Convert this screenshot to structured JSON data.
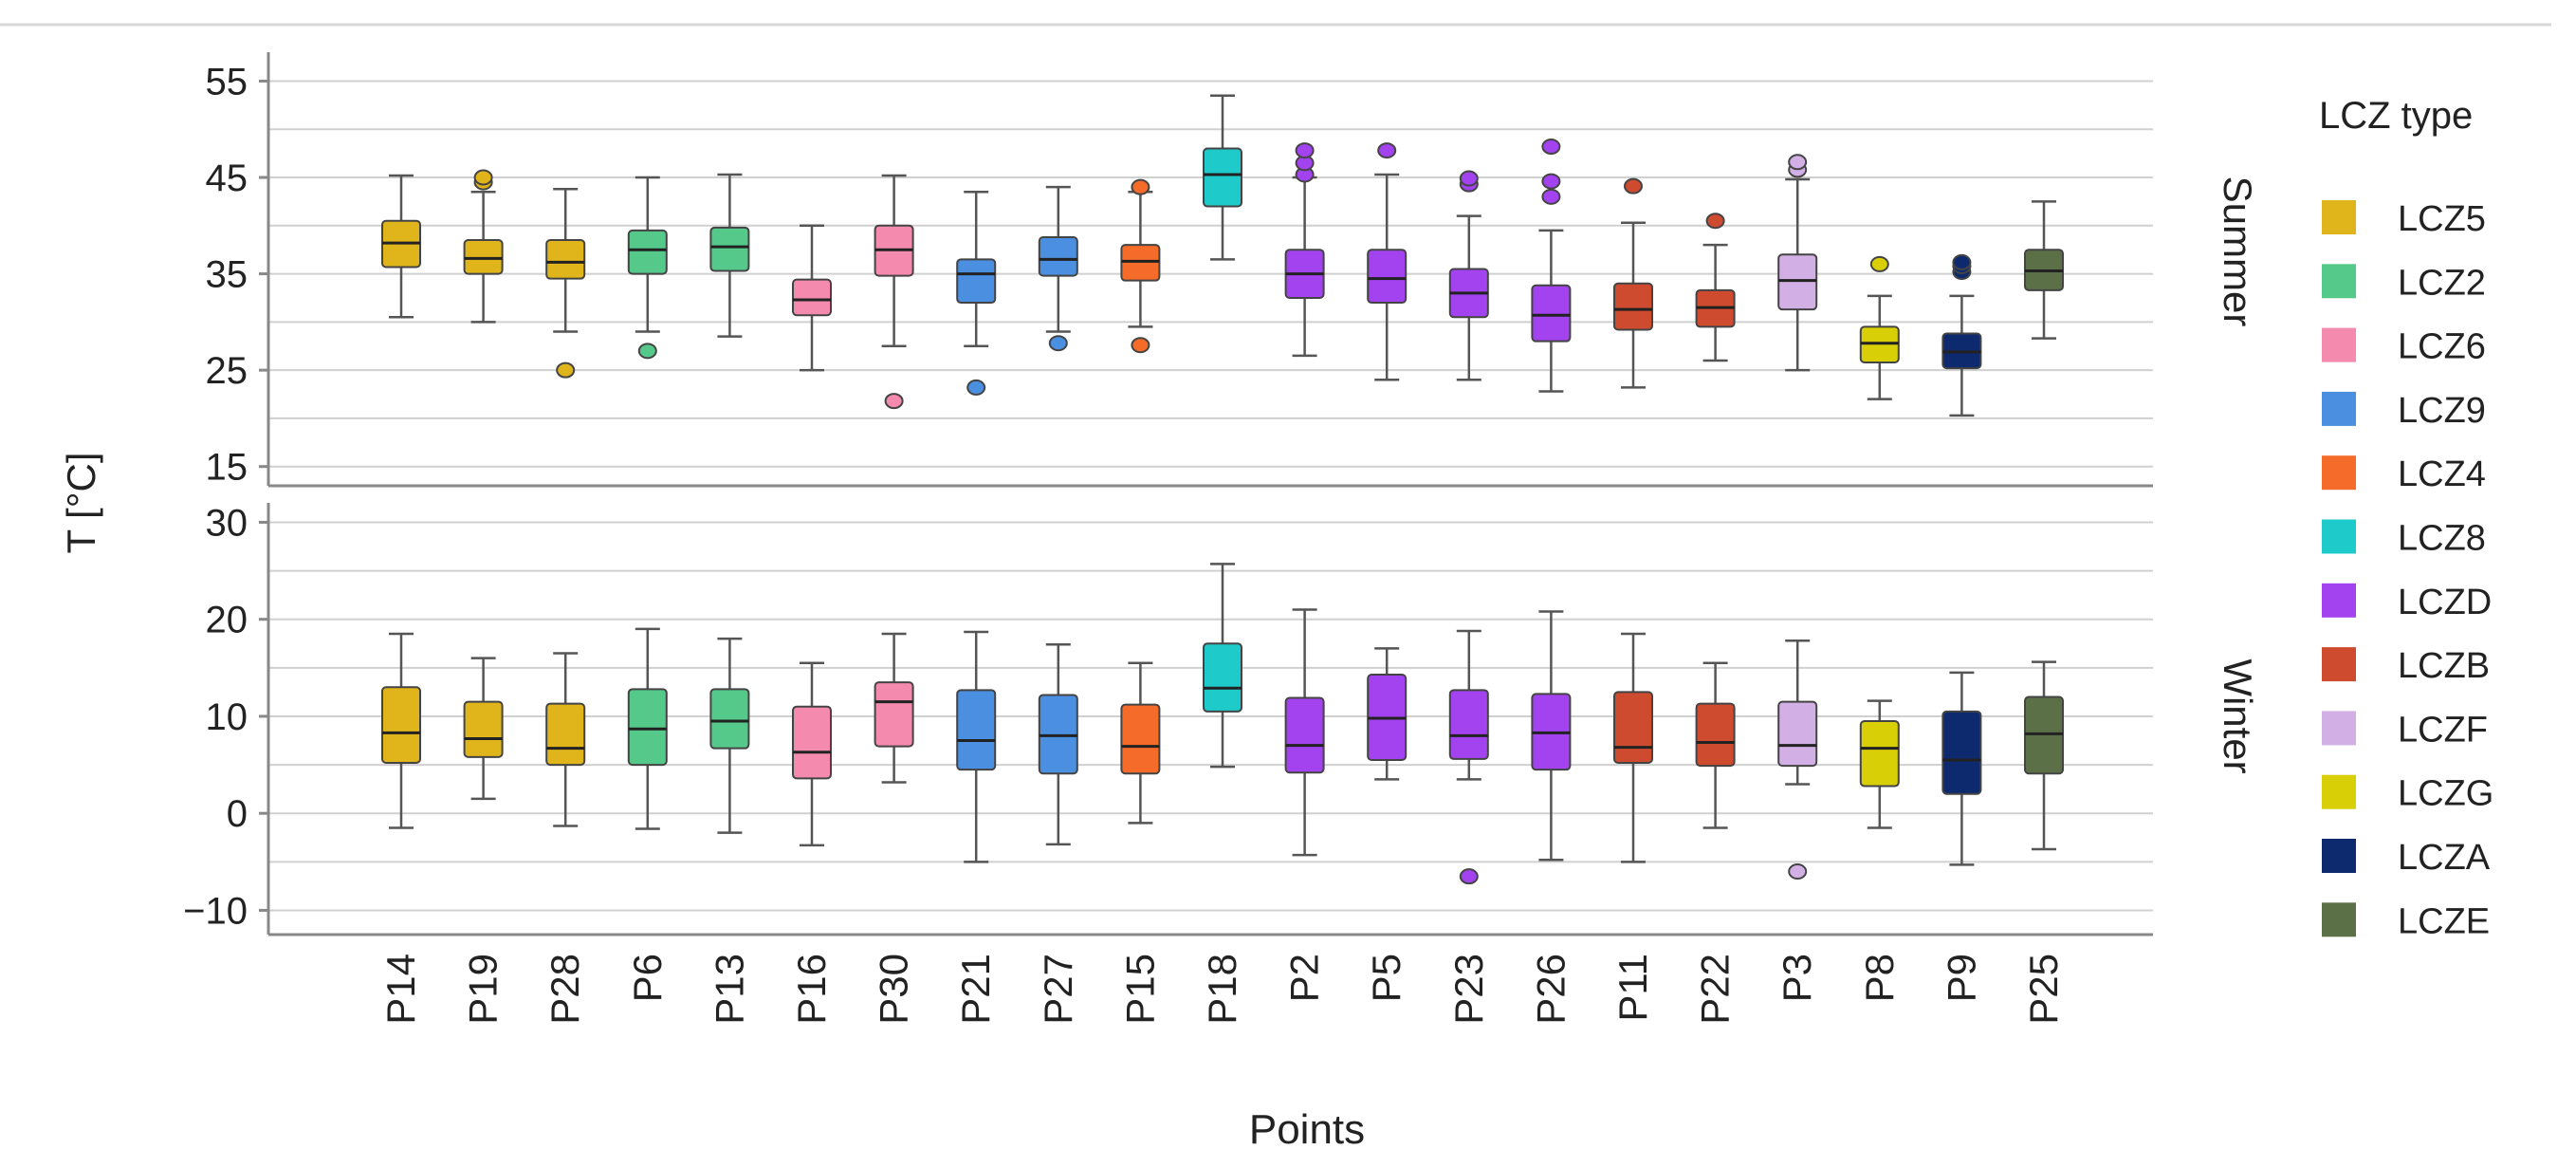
{
  "chart_data": {
    "type": "boxplot",
    "xlabel": "Points",
    "ylabel": "T [°C]",
    "categories": [
      "P14",
      "P19",
      "P28",
      "P6",
      "P13",
      "P16",
      "P30",
      "P21",
      "P27",
      "P15",
      "P18",
      "P2",
      "P5",
      "P23",
      "P26",
      "P11",
      "P22",
      "P3",
      "P8",
      "P9",
      "P25"
    ],
    "lcz": [
      "LCZ5",
      "LCZ5",
      "LCZ5",
      "LCZ2",
      "LCZ2",
      "LCZ6",
      "LCZ6",
      "LCZ9",
      "LCZ9",
      "LCZ4",
      "LCZ8",
      "LCZD",
      "LCZD",
      "LCZD",
      "LCZD",
      "LCZB",
      "LCZB",
      "LCZF",
      "LCZG",
      "LCZA",
      "LCZE"
    ],
    "legend": {
      "title": "LCZ type",
      "placement": "right",
      "items": [
        {
          "label": "LCZ5",
          "color": "#e0b51c"
        },
        {
          "label": "LCZ2",
          "color": "#54c98a"
        },
        {
          "label": "LCZ6",
          "color": "#f48aae"
        },
        {
          "label": "LCZ9",
          "color": "#4b8fe0"
        },
        {
          "label": "LCZ4",
          "color": "#f46b2a"
        },
        {
          "label": "LCZ8",
          "color": "#1fcbca"
        },
        {
          "label": "LCZD",
          "color": "#a343f0"
        },
        {
          "label": "LCZB",
          "color": "#cf4b2f"
        },
        {
          "label": "LCZF",
          "color": "#d2b0e6"
        },
        {
          "label": "LCZG",
          "color": "#d8cf06"
        },
        {
          "label": "LCZA",
          "color": "#0d2a6e"
        },
        {
          "label": "LCZE",
          "color": "#5c7048"
        }
      ]
    },
    "panels": [
      {
        "name": "Summer",
        "ylim": [
          13,
          58
        ],
        "yticks": [
          15,
          25,
          35,
          45,
          55
        ],
        "ytick_labels": [
          "15",
          "25",
          "35",
          "45",
          "55"
        ],
        "gridlines": [
          15,
          20,
          25,
          30,
          35,
          40,
          45,
          50,
          55
        ],
        "boxes": [
          {
            "min": 30.5,
            "q1": 35.7,
            "median": 38.2,
            "q3": 40.5,
            "max": 45.2,
            "outliers": []
          },
          {
            "min": 30.0,
            "q1": 35.0,
            "median": 36.6,
            "q3": 38.5,
            "max": 43.5,
            "outliers": [
              44.5,
              45.0
            ]
          },
          {
            "min": 29.0,
            "q1": 34.5,
            "median": 36.2,
            "q3": 38.5,
            "max": 43.8,
            "outliers": [
              25.0
            ]
          },
          {
            "min": 29.0,
            "q1": 35.0,
            "median": 37.5,
            "q3": 39.5,
            "max": 45.0,
            "outliers": [
              27.0
            ]
          },
          {
            "min": 28.5,
            "q1": 35.3,
            "median": 37.8,
            "q3": 39.8,
            "max": 45.3,
            "outliers": []
          },
          {
            "min": 25.0,
            "q1": 30.7,
            "median": 32.3,
            "q3": 34.4,
            "max": 40.0,
            "outliers": []
          },
          {
            "min": 27.5,
            "q1": 34.8,
            "median": 37.5,
            "q3": 40.0,
            "max": 45.2,
            "outliers": [
              21.8
            ]
          },
          {
            "min": 27.5,
            "q1": 32.0,
            "median": 35.0,
            "q3": 36.5,
            "max": 43.5,
            "outliers": [
              23.2
            ]
          },
          {
            "min": 29.0,
            "q1": 34.8,
            "median": 36.5,
            "q3": 38.8,
            "max": 44.0,
            "outliers": [
              27.8
            ]
          },
          {
            "min": 29.5,
            "q1": 34.3,
            "median": 36.3,
            "q3": 38.0,
            "max": 43.5,
            "outliers": [
              44.0,
              27.6
            ]
          },
          {
            "min": 36.5,
            "q1": 42.0,
            "median": 45.3,
            "q3": 48.0,
            "max": 53.5,
            "outliers": []
          },
          {
            "min": 26.5,
            "q1": 32.5,
            "median": 35.0,
            "q3": 37.5,
            "max": 45.0,
            "outliers": [
              45.3,
              46.5,
              47.8
            ]
          },
          {
            "min": 24.0,
            "q1": 32.0,
            "median": 34.5,
            "q3": 37.5,
            "max": 45.3,
            "outliers": [
              47.8
            ]
          },
          {
            "min": 24.0,
            "q1": 30.5,
            "median": 33.0,
            "q3": 35.5,
            "max": 41.0,
            "outliers": [
              44.3,
              44.9
            ]
          },
          {
            "min": 22.8,
            "q1": 28.0,
            "median": 30.7,
            "q3": 33.8,
            "max": 39.5,
            "outliers": [
              43.0,
              44.6,
              48.2
            ]
          },
          {
            "min": 23.2,
            "q1": 29.2,
            "median": 31.3,
            "q3": 34.0,
            "max": 40.3,
            "outliers": [
              44.1
            ]
          },
          {
            "min": 26.0,
            "q1": 29.5,
            "median": 31.5,
            "q3": 33.3,
            "max": 38.0,
            "outliers": [
              40.5
            ]
          },
          {
            "min": 25.0,
            "q1": 31.3,
            "median": 34.3,
            "q3": 37.0,
            "max": 44.8,
            "outliers": [
              45.8,
              46.6
            ]
          },
          {
            "min": 22.0,
            "q1": 25.8,
            "median": 27.8,
            "q3": 29.5,
            "max": 32.7,
            "outliers": [
              36.0
            ]
          },
          {
            "min": 20.3,
            "q1": 25.2,
            "median": 26.9,
            "q3": 28.8,
            "max": 32.7,
            "outliers": [
              35.2,
              35.8,
              36.2
            ]
          },
          {
            "min": 28.3,
            "q1": 33.3,
            "median": 35.3,
            "q3": 37.5,
            "max": 42.5,
            "outliers": []
          }
        ]
      },
      {
        "name": "Winter",
        "ylim": [
          -12.5,
          32
        ],
        "yticks": [
          -10,
          0,
          10,
          20,
          30
        ],
        "ytick_labels": [
          "−10",
          "0",
          "10",
          "20",
          "30"
        ],
        "gridlines": [
          -10,
          -5,
          0,
          5,
          10,
          15,
          20,
          25,
          30
        ],
        "boxes": [
          {
            "min": -1.5,
            "q1": 5.2,
            "median": 8.3,
            "q3": 13.0,
            "max": 18.5,
            "outliers": []
          },
          {
            "min": 1.5,
            "q1": 5.8,
            "median": 7.7,
            "q3": 11.5,
            "max": 16.0,
            "outliers": []
          },
          {
            "min": -1.3,
            "q1": 5.0,
            "median": 6.7,
            "q3": 11.3,
            "max": 16.5,
            "outliers": []
          },
          {
            "min": -1.6,
            "q1": 5.0,
            "median": 8.7,
            "q3": 12.8,
            "max": 19.0,
            "outliers": []
          },
          {
            "min": -2.0,
            "q1": 6.7,
            "median": 9.5,
            "q3": 12.8,
            "max": 18.0,
            "outliers": []
          },
          {
            "min": -3.3,
            "q1": 3.6,
            "median": 6.3,
            "q3": 11.0,
            "max": 15.5,
            "outliers": []
          },
          {
            "min": 3.2,
            "q1": 6.9,
            "median": 11.5,
            "q3": 13.5,
            "max": 18.5,
            "outliers": []
          },
          {
            "min": -5.0,
            "q1": 4.5,
            "median": 7.5,
            "q3": 12.7,
            "max": 18.7,
            "outliers": []
          },
          {
            "min": -3.2,
            "q1": 4.1,
            "median": 8.0,
            "q3": 12.2,
            "max": 17.4,
            "outliers": []
          },
          {
            "min": -1.0,
            "q1": 4.1,
            "median": 6.9,
            "q3": 11.2,
            "max": 15.5,
            "outliers": []
          },
          {
            "min": 4.8,
            "q1": 10.5,
            "median": 12.9,
            "q3": 17.5,
            "max": 25.7,
            "outliers": []
          },
          {
            "min": -4.3,
            "q1": 4.2,
            "median": 7.0,
            "q3": 11.9,
            "max": 21.0,
            "outliers": []
          },
          {
            "min": 3.5,
            "q1": 5.5,
            "median": 9.8,
            "q3": 14.3,
            "max": 17.0,
            "outliers": []
          },
          {
            "min": 3.5,
            "q1": 5.6,
            "median": 8.0,
            "q3": 12.7,
            "max": 18.8,
            "outliers": [
              -6.5
            ]
          },
          {
            "min": -4.8,
            "q1": 4.5,
            "median": 8.3,
            "q3": 12.3,
            "max": 20.8,
            "outliers": []
          },
          {
            "min": -5.0,
            "q1": 5.2,
            "median": 6.8,
            "q3": 12.5,
            "max": 18.5,
            "outliers": []
          },
          {
            "min": -1.5,
            "q1": 4.9,
            "median": 7.3,
            "q3": 11.3,
            "max": 15.5,
            "outliers": []
          },
          {
            "min": 3.0,
            "q1": 4.9,
            "median": 7.0,
            "q3": 11.5,
            "max": 17.8,
            "outliers": [
              -6.0
            ]
          },
          {
            "min": -1.5,
            "q1": 2.8,
            "median": 6.7,
            "q3": 9.5,
            "max": 11.6,
            "outliers": []
          },
          {
            "min": -5.3,
            "q1": 2.0,
            "median": 5.5,
            "q3": 10.5,
            "max": 14.5,
            "outliers": []
          },
          {
            "min": -3.7,
            "q1": 4.1,
            "median": 8.2,
            "q3": 12.0,
            "max": 15.6,
            "outliers": []
          }
        ]
      }
    ]
  }
}
